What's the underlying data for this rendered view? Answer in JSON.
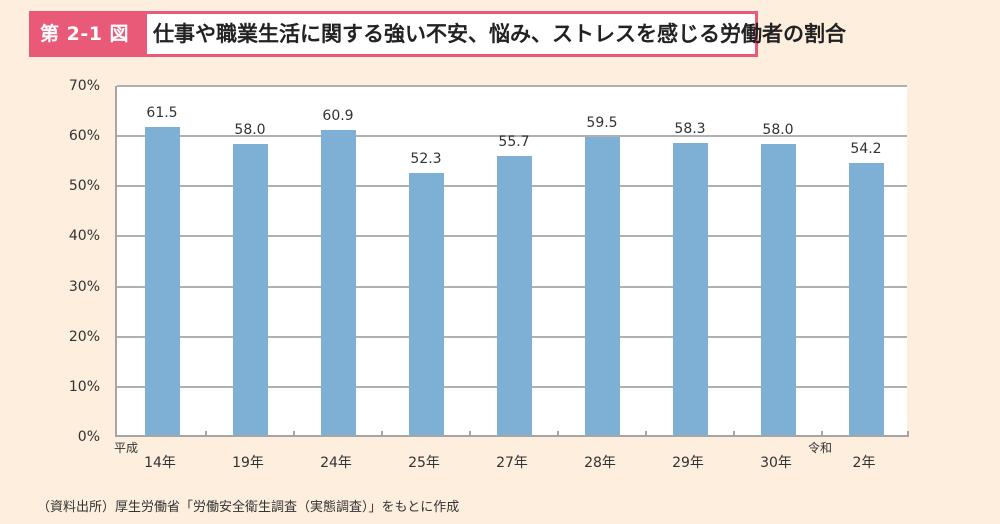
{
  "header": {
    "figure_number": "第 2-1 図",
    "title": "仕事や職業生活に関する強い不安、悩み、ストレスを感じる労働者の割合"
  },
  "colors": {
    "background": "#fdeedd",
    "accent": "#e85a78",
    "bar": "#7eafd4",
    "grid": "#b0b0b0"
  },
  "y_axis": {
    "ticks": [
      "70%",
      "60%",
      "50%",
      "40%",
      "30%",
      "20%",
      "10%",
      "0%"
    ]
  },
  "x_axis": {
    "era_labels": [
      {
        "label": "平成",
        "position": "before 14年"
      },
      {
        "label": "令和",
        "position": "before 2年"
      }
    ],
    "categories": [
      "14年",
      "19年",
      "24年",
      "25年",
      "27年",
      "28年",
      "29年",
      "30年",
      "2年"
    ]
  },
  "bars": [
    {
      "category": "14年",
      "value": 61.5,
      "label": "61.5"
    },
    {
      "category": "19年",
      "value": 58.0,
      "label": "58.0"
    },
    {
      "category": "24年",
      "value": 60.9,
      "label": "60.9"
    },
    {
      "category": "25年",
      "value": 52.3,
      "label": "52.3"
    },
    {
      "category": "27年",
      "value": 55.7,
      "label": "55.7"
    },
    {
      "category": "28年",
      "value": 59.5,
      "label": "59.5"
    },
    {
      "category": "29年",
      "value": 58.3,
      "label": "58.3"
    },
    {
      "category": "30年",
      "value": 58.0,
      "label": "58.0"
    },
    {
      "category": "2年",
      "value": 54.2,
      "label": "54.2"
    }
  ],
  "source": "（資料出所）厚生労働省「労働安全衛生調査（実態調査）」をもとに作成",
  "chart_data": {
    "type": "bar",
    "title": "仕事や職業生活に関する強い不安、悩み、ストレスを感じる労働者の割合",
    "categories": [
      "平成14年",
      "平成19年",
      "平成24年",
      "平成25年",
      "平成27年",
      "平成28年",
      "平成29年",
      "平成30年",
      "令和2年"
    ],
    "values": [
      61.5,
      58.0,
      60.9,
      52.3,
      55.7,
      59.5,
      58.3,
      58.0,
      54.2
    ],
    "xlabel": "",
    "ylabel": "",
    "ylim": [
      0,
      70
    ],
    "yticks": [
      "0%",
      "10%",
      "20%",
      "30%",
      "40%",
      "50%",
      "60%",
      "70%"
    ],
    "grid": true,
    "data_labels": true,
    "legend": null,
    "source": "（資料出所）厚生労働省「労働安全衛生調査（実態調査）」をもとに作成"
  }
}
